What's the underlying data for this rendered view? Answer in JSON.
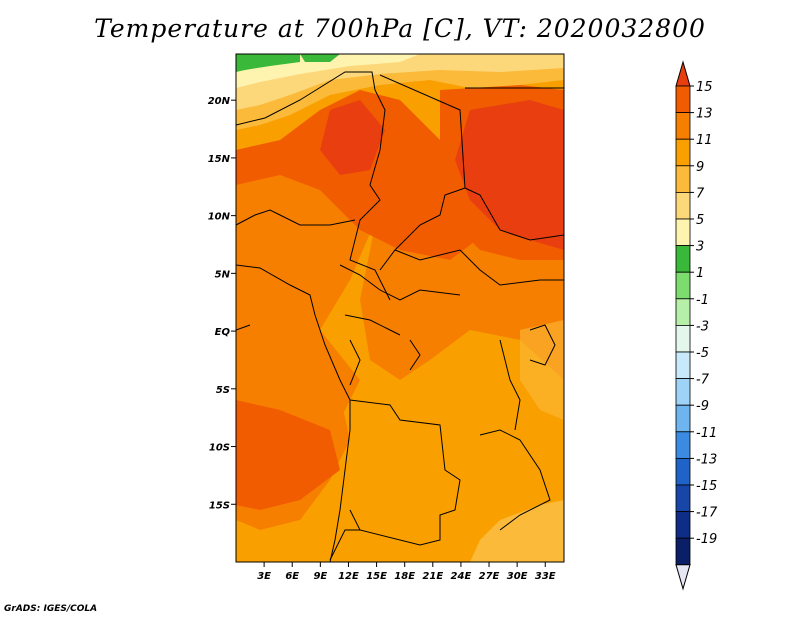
{
  "title": "Temperature at 700hPa [C], VT: 2020032800",
  "footer": "GrADS: IGES/COLA",
  "map": {
    "lon_range": [
      0,
      35
    ],
    "lat_range": [
      -20,
      24
    ],
    "lon_ticks": [
      "3E",
      "6E",
      "9E",
      "12E",
      "15E",
      "18E",
      "21E",
      "24E",
      "27E",
      "30E",
      "33E"
    ],
    "lat_ticks": [
      "20N",
      "15N",
      "10N",
      "5N",
      "EQ",
      "5S",
      "10S",
      "15S"
    ]
  },
  "colorbar": {
    "labels": [
      "15",
      "13",
      "11",
      "9",
      "7",
      "5",
      "3",
      "1",
      "-1",
      "-3",
      "-5",
      "-7",
      "-9",
      "-11",
      "-13",
      "-15",
      "-17",
      "-19"
    ],
    "colors": [
      "#e83e10",
      "#f25c00",
      "#f77f00",
      "#f9a000",
      "#fbba3a",
      "#fdd87a",
      "#fff3b0",
      "#3ab83a",
      "#7ddc6e",
      "#b6efa8",
      "#e4f7ec",
      "#c8e8fb",
      "#9fd2f7",
      "#6eb4ef",
      "#3b8be3",
      "#1f63c8",
      "#1745a8",
      "#0f2c86",
      "#0a1f66",
      "#e6e6f5"
    ]
  }
}
